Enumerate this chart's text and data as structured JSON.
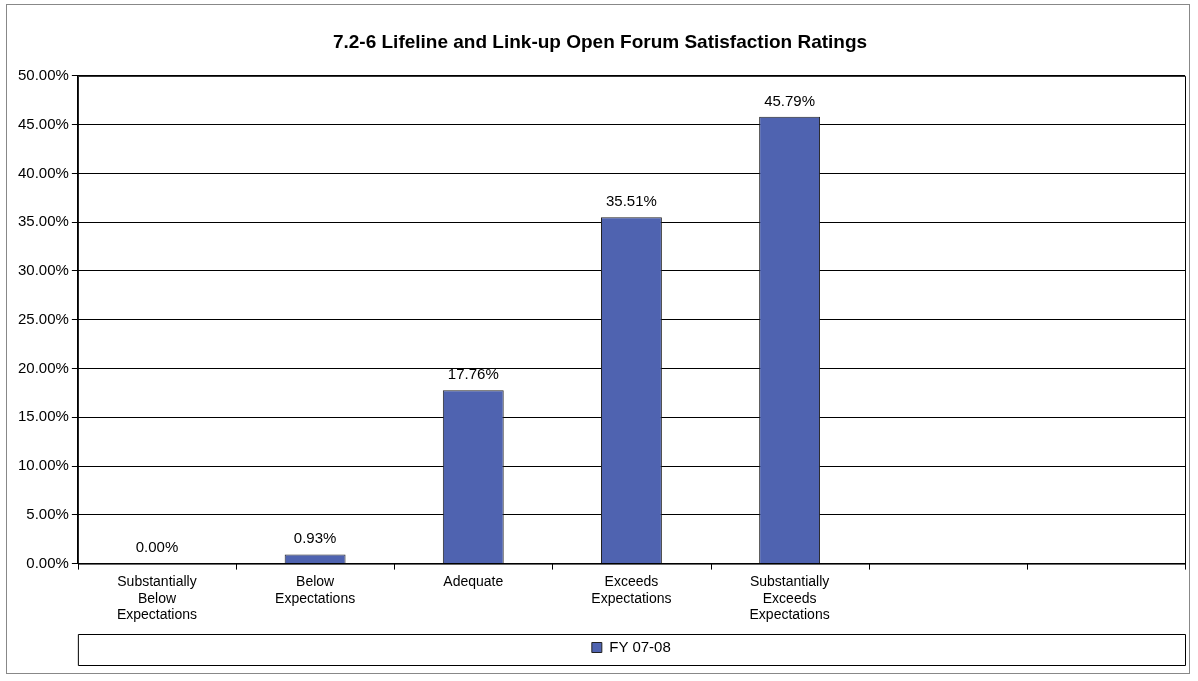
{
  "chart_data": {
    "type": "bar",
    "title": "7.2-6 Lifeline and Link-up Open Forum Satisfaction Ratings",
    "categories": [
      "Substantially Below Expectations",
      "Below Expectations",
      "Adequate",
      "Exceeds Expectations",
      "Substantially Exceeds Expectations",
      null,
      null
    ],
    "series": [
      {
        "name": "FY 07-08",
        "color": "#4f63b0",
        "values": [
          0,
          0.93,
          17.76,
          35.51,
          45.79,
          null,
          null
        ],
        "value_labels": [
          "0.00%",
          "0.93%",
          "17.76%",
          "35.51%",
          "45.79%",
          null,
          null
        ]
      }
    ],
    "ylim": [
      0,
      50
    ],
    "yticks": [
      {
        "value": 0,
        "label": "0.00%"
      },
      {
        "value": 5,
        "label": "5.00%"
      },
      {
        "value": 10,
        "label": "10.00%"
      },
      {
        "value": 15,
        "label": "15.00%"
      },
      {
        "value": 20,
        "label": "20.00%"
      },
      {
        "value": 25,
        "label": "25.00%"
      },
      {
        "value": 30,
        "label": "30.00%"
      },
      {
        "value": 35,
        "label": "35.00%"
      },
      {
        "value": 40,
        "label": "40.00%"
      },
      {
        "value": 45,
        "label": "45.00%"
      },
      {
        "value": 50,
        "label": "50.00%"
      }
    ],
    "grid": "y",
    "legend": "bottom"
  }
}
